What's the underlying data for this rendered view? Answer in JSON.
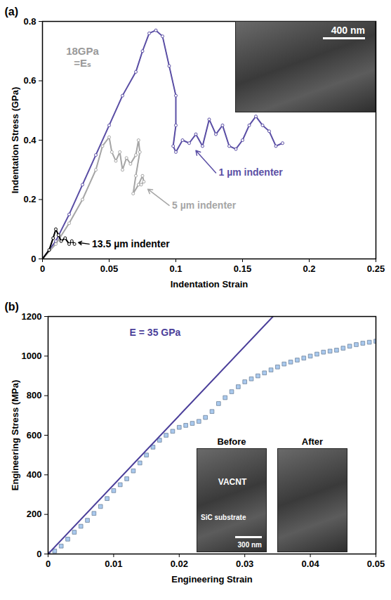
{
  "chart_data": [
    {
      "panel": "(a)",
      "type": "line",
      "xlabel": "Indentation Strain",
      "ylabel": "Indentation Stress (GPa)",
      "xlim": [
        0,
        0.25
      ],
      "xticks": [
        0,
        0.05,
        0.1,
        0.15,
        0.2,
        0.25
      ],
      "ylim": [
        0,
        0.8
      ],
      "yticks": [
        0,
        0.2,
        0.4,
        0.6,
        0.8
      ],
      "series": [
        {
          "name": "1 µm indenter",
          "color": "#5b4fa5",
          "marker": "circle",
          "x": [
            0,
            0.01,
            0.02,
            0.03,
            0.04,
            0.05,
            0.06,
            0.07,
            0.075,
            0.08,
            0.085,
            0.09,
            0.095,
            0.1,
            0.1,
            0.098,
            0.1,
            0.105,
            0.11,
            0.115,
            0.12,
            0.125,
            0.13,
            0.135,
            0.14,
            0.145,
            0.15,
            0.155,
            0.16,
            0.165,
            0.17,
            0.175,
            0.18
          ],
          "values": [
            0,
            0.06,
            0.15,
            0.25,
            0.35,
            0.45,
            0.55,
            0.63,
            0.7,
            0.76,
            0.77,
            0.75,
            0.65,
            0.55,
            0.45,
            0.38,
            0.36,
            0.4,
            0.39,
            0.42,
            0.38,
            0.47,
            0.42,
            0.45,
            0.38,
            0.37,
            0.4,
            0.45,
            0.48,
            0.45,
            0.43,
            0.38,
            0.39
          ],
          "label_at": [
            0.13,
            0.29
          ],
          "arrow_to": [
            0.115,
            0.365
          ]
        },
        {
          "name": "5 µm indenter",
          "color": "#a6a6a6",
          "marker": "circle",
          "x": [
            0,
            0.01,
            0.02,
            0.03,
            0.04,
            0.045,
            0.05,
            0.052,
            0.055,
            0.058,
            0.06,
            0.063,
            0.066,
            0.07,
            0.072,
            0.073,
            0.07,
            0.068,
            0.072,
            0.075,
            0.076,
            0.074
          ],
          "values": [
            0,
            0.05,
            0.12,
            0.2,
            0.3,
            0.38,
            0.41,
            0.36,
            0.33,
            0.36,
            0.3,
            0.34,
            0.32,
            0.35,
            0.4,
            0.36,
            0.28,
            0.22,
            0.25,
            0.28,
            0.26,
            0.25
          ],
          "label_at": [
            0.095,
            0.18
          ],
          "arrow_to": [
            0.079,
            0.235
          ]
        },
        {
          "name": "13.5 µm indenter",
          "color": "#000000",
          "marker": "circle",
          "x": [
            0,
            0.005,
            0.008,
            0.01,
            0.012,
            0.014,
            0.017,
            0.02,
            0.022,
            0.024
          ],
          "values": [
            0,
            0.03,
            0.07,
            0.1,
            0.08,
            0.06,
            0.07,
            0.05,
            0.06,
            0.05
          ],
          "label_at": [
            0.035,
            0.05
          ],
          "arrow_to": [
            0.027,
            0.055
          ]
        }
      ],
      "annotations": [
        {
          "text": "18GPa\n=Eₛ",
          "x": 0.03,
          "y": 0.68,
          "color": "#999999"
        }
      ],
      "inset": {
        "scale_bar": "400 nm"
      }
    },
    {
      "panel": "(b)",
      "type": "scatter",
      "xlabel": "Engineering Strain",
      "ylabel": "Engineering Stress (MPa)",
      "xlim": [
        0,
        0.05
      ],
      "xticks": [
        0,
        0.01,
        0.02,
        0.03,
        0.04,
        0.05
      ],
      "ylim": [
        0,
        1200
      ],
      "yticks": [
        0,
        200,
        400,
        600,
        800,
        1000,
        1200
      ],
      "series": [
        {
          "type": "scatter",
          "marker": "square",
          "color": "#a9c9ee",
          "x": [
            0,
            0.001,
            0.002,
            0.003,
            0.004,
            0.005,
            0.006,
            0.007,
            0.008,
            0.009,
            0.01,
            0.011,
            0.012,
            0.013,
            0.014,
            0.015,
            0.016,
            0.017,
            0.018,
            0.019,
            0.02,
            0.021,
            0.022,
            0.023,
            0.024,
            0.025,
            0.026,
            0.027,
            0.028,
            0.029,
            0.03,
            0.031,
            0.032,
            0.033,
            0.034,
            0.035,
            0.036,
            0.037,
            0.038,
            0.039,
            0.04,
            0.041,
            0.042,
            0.043,
            0.044,
            0.045,
            0.046,
            0.047,
            0.048,
            0.049,
            0.05
          ],
          "values": [
            0,
            15,
            40,
            75,
            110,
            140,
            170,
            205,
            240,
            280,
            320,
            350,
            380,
            420,
            460,
            500,
            540,
            575,
            600,
            620,
            640,
            650,
            660,
            670,
            690,
            720,
            760,
            790,
            820,
            845,
            870,
            885,
            900,
            915,
            930,
            945,
            960,
            970,
            980,
            990,
            1000,
            1010,
            1020,
            1025,
            1030,
            1040,
            1050,
            1058,
            1065,
            1070,
            1075
          ]
        },
        {
          "type": "line",
          "name": "E = 35 GPa",
          "color": "#4b3f9a",
          "x": [
            0,
            0.0343
          ],
          "values": [
            0,
            1200
          ],
          "label_at": [
            0.012,
            1120
          ]
        }
      ],
      "inset": {
        "panels": [
          {
            "title": "Before",
            "labels": [
              "VACNT",
              "SiC substrate"
            ],
            "scale_bar": "300 nm"
          },
          {
            "title": "After"
          }
        ]
      }
    }
  ]
}
